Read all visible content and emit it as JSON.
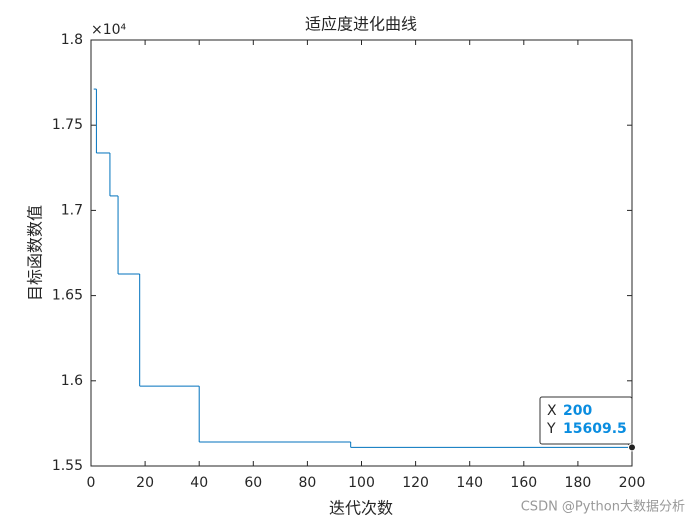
{
  "chart_data": {
    "type": "step",
    "title": "适应度进化曲线",
    "x_label": "迭代次数",
    "y_label": "目标函数数值",
    "y_exponent_label": "×10⁴",
    "x": [
      1,
      2,
      7,
      10,
      18,
      40,
      96,
      200
    ],
    "series": [
      {
        "color": "#0072bd",
        "values": [
          17712,
          17337,
          17085,
          16627,
          15969,
          15641,
          15609.5,
          15609.5
        ]
      }
    ],
    "xlim": [
      0,
      200
    ],
    "xticks": [
      0,
      20,
      40,
      60,
      80,
      100,
      120,
      140,
      160,
      180,
      200
    ],
    "ylim": [
      15500,
      18000
    ],
    "yticks": [
      {
        "value": 15500,
        "label": "1.55"
      },
      {
        "value": 16000,
        "label": "1.6"
      },
      {
        "value": 16500,
        "label": "1.65"
      },
      {
        "value": 17000,
        "label": "1.7"
      },
      {
        "value": 17500,
        "label": "1.75"
      },
      {
        "value": 18000,
        "label": "1.8"
      }
    ],
    "grid": false,
    "datatip": {
      "x_label": "X",
      "x": 200,
      "y_label": "Y",
      "y": 15609.5
    }
  },
  "watermark": "CSDN @Python大数据分析"
}
